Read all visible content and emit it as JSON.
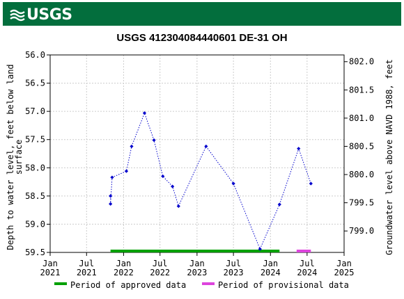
{
  "header": {
    "logo_text": "USGS",
    "bar_color": "#036e3d"
  },
  "chart_data": {
    "type": "scatter",
    "title": "USGS 412304084440601 DE-31 OH",
    "ylabel_left": "Depth to water level, feet below land surface",
    "ylabel_right": "Groundwater level above NAVD 1988, feet",
    "y_left_lim": [
      56.0,
      59.5
    ],
    "y_left_inverted": true,
    "y_left_ticks": [
      "56.0",
      "56.5",
      "57.0",
      "57.5",
      "58.0",
      "58.5",
      "59.0",
      "59.5"
    ],
    "y_right_lim": [
      802.12,
      798.62
    ],
    "y_right_ticks": [
      "802.0",
      "801.5",
      "801.0",
      "800.5",
      "800.0",
      "799.5",
      "799.0"
    ],
    "x_ticks": [
      {
        "date": "2021-01-01",
        "line1": "Jan",
        "line2": "2021"
      },
      {
        "date": "2021-07-01",
        "line1": "Jul",
        "line2": "2021"
      },
      {
        "date": "2022-01-01",
        "line1": "Jan",
        "line2": "2022"
      },
      {
        "date": "2022-07-01",
        "line1": "Jul",
        "line2": "2022"
      },
      {
        "date": "2023-01-01",
        "line1": "Jan",
        "line2": "2023"
      },
      {
        "date": "2023-07-01",
        "line1": "Jul",
        "line2": "2023"
      },
      {
        "date": "2024-01-01",
        "line1": "Jan",
        "line2": "2024"
      },
      {
        "date": "2024-07-01",
        "line1": "Jul",
        "line2": "2024"
      },
      {
        "date": "2025-01-01",
        "line1": "Jan",
        "line2": "2025"
      }
    ],
    "x_range": [
      "2021-01-01",
      "2025-01-01"
    ],
    "series": [
      {
        "color": "#0000cc",
        "style": "dotted-line-with-diamond-markers",
        "points": [
          {
            "x": "2021-10-28",
            "y": 58.5
          },
          {
            "x": "2021-10-28",
            "y": 58.64
          },
          {
            "x": "2021-11-05",
            "y": 58.17
          },
          {
            "x": "2022-01-15",
            "y": 58.06
          },
          {
            "x": "2022-02-10",
            "y": 57.62
          },
          {
            "x": "2022-04-15",
            "y": 57.03
          },
          {
            "x": "2022-06-01",
            "y": 57.51
          },
          {
            "x": "2022-07-15",
            "y": 58.15
          },
          {
            "x": "2022-09-01",
            "y": 58.33
          },
          {
            "x": "2022-10-01",
            "y": 58.68
          },
          {
            "x": "2023-02-15",
            "y": 57.62
          },
          {
            "x": "2023-07-01",
            "y": 58.28
          },
          {
            "x": "2023-11-10",
            "y": 59.44
          },
          {
            "x": "2024-02-15",
            "y": 58.65
          },
          {
            "x": "2024-05-20",
            "y": 57.66
          },
          {
            "x": "2024-07-20",
            "y": 58.28
          }
        ]
      }
    ],
    "periods": [
      {
        "name": "Period of approved data",
        "color": "#00a000",
        "start": "2021-10-28",
        "end": "2024-02-15"
      },
      {
        "name": "Period of provisional data",
        "color": "#dd44dd",
        "start": "2024-05-10",
        "end": "2024-07-20"
      }
    ],
    "legend": [
      {
        "label": "Period of approved data",
        "color": "#00a000"
      },
      {
        "label": "Period of provisional data",
        "color": "#dd44dd"
      }
    ],
    "grid": true,
    "legend_position": "bottom"
  }
}
